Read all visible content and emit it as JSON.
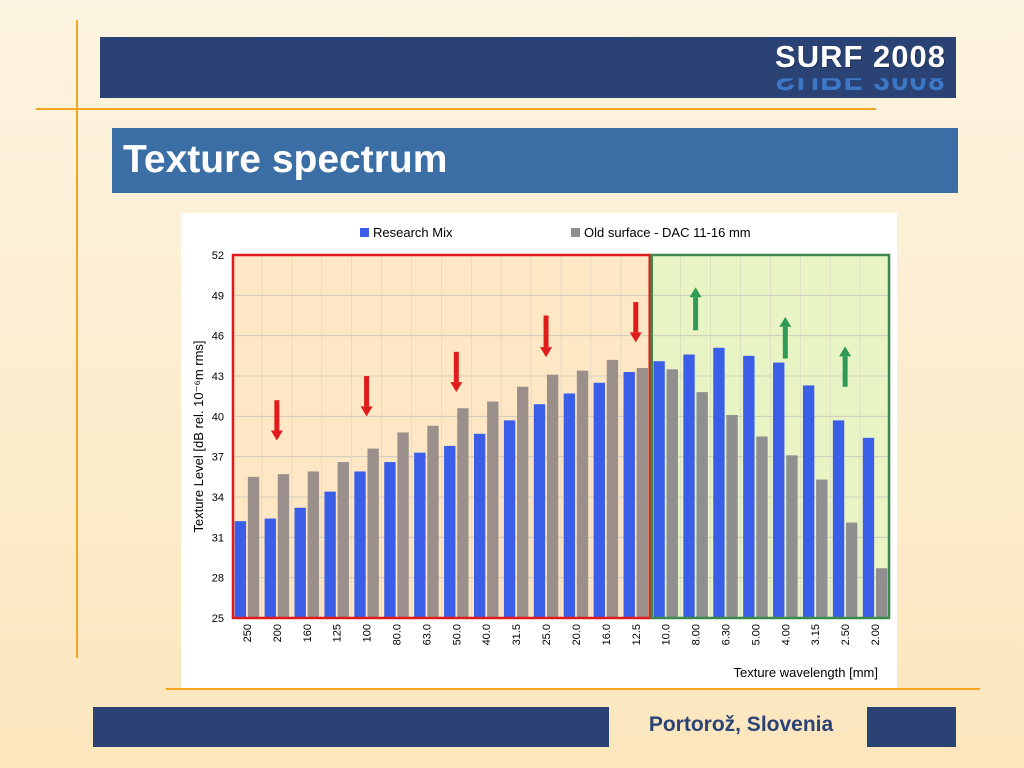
{
  "slide": {
    "brand": "SURF 2008",
    "title": "Texture spectrum",
    "footer": "Portorož, Slovenia"
  },
  "colors": {
    "header_bar": "#2b4374",
    "title_bar": "#3a6ea5",
    "accent_line": "#f5a623",
    "series_research_mix": "#3b5ee8",
    "series_old_surface": "#9a8f8a",
    "series_old_surface_right": "#8f8f8f",
    "region_left_fill": "#fde7c4",
    "region_left_border": "#e01b1b",
    "region_right_fill": "#e9f4c4",
    "region_right_border": "#3a8a4e",
    "arrow_down": "#e01b1b",
    "arrow_up": "#2e9a55"
  },
  "chart_data": {
    "type": "bar",
    "xlabel": "Texture wavelength [mm]",
    "ylabel": "Texture Level  [dB rel. 10⁻⁶m  rms]",
    "ylim": [
      25,
      52
    ],
    "yticks": [
      "25",
      "28",
      "31",
      "34",
      "37",
      "40",
      "43",
      "46",
      "49",
      "52"
    ],
    "legend_position": "top",
    "grid": true,
    "categories": [
      "250",
      "200",
      "160",
      "125",
      "100",
      "80.0",
      "63.0",
      "50.0",
      "40.0",
      "31.5",
      "25.0",
      "20.0",
      "16.0",
      "12.5",
      "10.0",
      "8.00",
      "6.30",
      "5.00",
      "4.00",
      "3.15",
      "2.50",
      "2.00"
    ],
    "series": [
      {
        "name": "Research Mix",
        "values": [
          32.2,
          32.4,
          33.2,
          34.4,
          35.9,
          36.6,
          37.3,
          37.8,
          38.7,
          39.7,
          40.9,
          41.7,
          42.5,
          43.3,
          44.1,
          44.6,
          45.1,
          44.5,
          44.0,
          42.3,
          39.7,
          38.4
        ]
      },
      {
        "name": "Old surface - DAC 11-16 mm",
        "values": [
          35.5,
          35.7,
          35.9,
          36.6,
          37.6,
          38.8,
          39.3,
          40.6,
          41.1,
          42.2,
          43.1,
          43.4,
          44.2,
          43.6,
          43.5,
          41.8,
          40.1,
          38.5,
          37.1,
          35.3,
          32.1,
          28.7
        ]
      }
    ],
    "regions": [
      {
        "from_category": "250",
        "to_category": "12.5",
        "fill": "#fde7c4",
        "border": "#e01b1b"
      },
      {
        "from_category": "10.0",
        "to_category": "2.00",
        "fill": "#e9f4c4",
        "border": "#3a8a4e"
      }
    ],
    "annotations": [
      {
        "type": "arrow-down",
        "category": "200",
        "from": 41.2,
        "to": 38.2
      },
      {
        "type": "arrow-down",
        "category": "100",
        "from": 43.0,
        "to": 40.0
      },
      {
        "type": "arrow-down",
        "category": "50.0",
        "from": 44.8,
        "to": 41.8
      },
      {
        "type": "arrow-down",
        "category": "25.0",
        "from": 47.5,
        "to": 44.4
      },
      {
        "type": "arrow-down",
        "category": "12.5",
        "from": 48.5,
        "to": 45.5
      },
      {
        "type": "arrow-up",
        "category": "8.00",
        "from": 46.4,
        "to": 49.6
      },
      {
        "type": "arrow-up",
        "category": "4.00",
        "from": 44.3,
        "to": 47.4
      },
      {
        "type": "arrow-up",
        "category": "2.50",
        "from": 42.2,
        "to": 45.2
      }
    ]
  }
}
